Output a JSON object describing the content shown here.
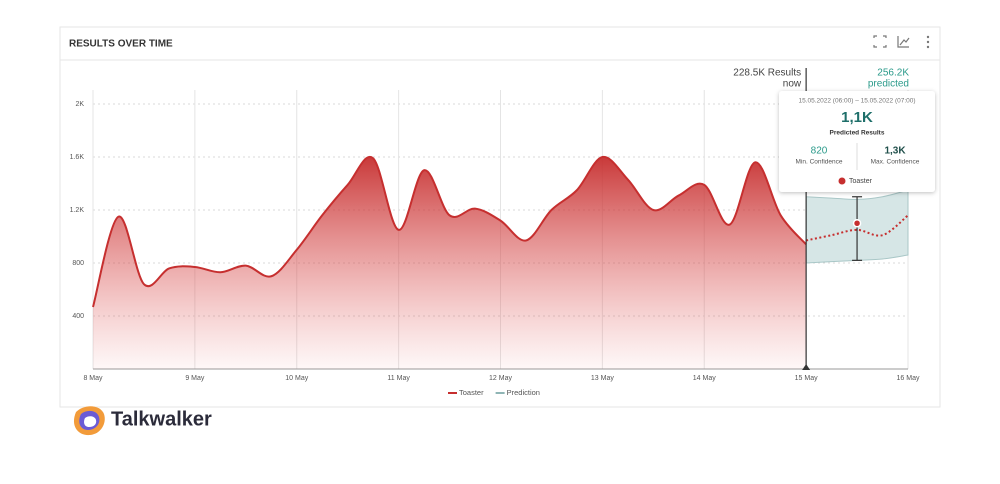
{
  "chart_data": {
    "type": "area",
    "title": "RESULTS OVER TIME",
    "categories": [
      "8 May",
      null,
      null,
      null,
      "9 May",
      null,
      null,
      null,
      "10 May",
      null,
      null,
      null,
      "11 May",
      null,
      null,
      null,
      "12 May",
      null,
      null,
      null,
      "13 May",
      null,
      null,
      null,
      "14 May",
      null,
      null,
      null,
      "15 May",
      null,
      null,
      null,
      "16 May"
    ],
    "series": [
      {
        "name": "Toaster",
        "color": "#c62f2f",
        "values": [
          468,
          1150,
          640,
          760,
          770,
          730,
          780,
          700,
          900,
          1160,
          1390,
          1590,
          1050,
          1500,
          1160,
          1210,
          1120,
          970,
          1200,
          1350,
          1600,
          1430,
          1200,
          1310,
          1390,
          1090,
          1560,
          1160,
          940,
          null,
          null,
          null,
          null
        ]
      },
      {
        "name": "Prediction",
        "color": "#8fb5b5",
        "values": [
          null,
          null,
          null,
          null,
          null,
          null,
          null,
          null,
          null,
          null,
          null,
          null,
          null,
          null,
          null,
          null,
          null,
          null,
          null,
          null,
          null,
          null,
          null,
          null,
          null,
          null,
          null,
          null,
          970,
          1010,
          1050,
          1010,
          1160
        ],
        "lower": [
          null,
          null,
          null,
          null,
          null,
          null,
          null,
          null,
          null,
          null,
          null,
          null,
          null,
          null,
          null,
          null,
          null,
          null,
          null,
          null,
          null,
          null,
          null,
          null,
          null,
          null,
          null,
          null,
          800,
          810,
          820,
          830,
          860
        ],
        "upper": [
          null,
          null,
          null,
          null,
          null,
          null,
          null,
          null,
          null,
          null,
          null,
          null,
          null,
          null,
          null,
          null,
          null,
          null,
          null,
          null,
          null,
          null,
          null,
          null,
          null,
          null,
          null,
          null,
          1300,
          1290,
          1280,
          1300,
          1350
        ]
      }
    ],
    "ylim": [
      0,
      2000
    ],
    "yticks": [
      400,
      800,
      {
        "value": 1200,
        "label": "1.2K"
      },
      {
        "value": 1600,
        "label": "1.6K"
      },
      {
        "value": 2000,
        "label": "2K"
      }
    ],
    "grid": true,
    "annotations": {
      "now_results": "228.5K Results",
      "now": "now",
      "predicted_results": "256.2K",
      "predicted": "predicted"
    },
    "tooltip": {
      "range": "15.05.2022 (06:00) – 15.05.2022 (07:00)",
      "value": 1100,
      "value_label": "1,1K",
      "value_caption": "Predicted Results",
      "min": 820,
      "min_caption": "Min. Confidence",
      "max": 1300,
      "max_label": "1,3K",
      "max_caption": "Max. Confidence",
      "series": "Toaster"
    }
  },
  "brand": "Talkwalker"
}
